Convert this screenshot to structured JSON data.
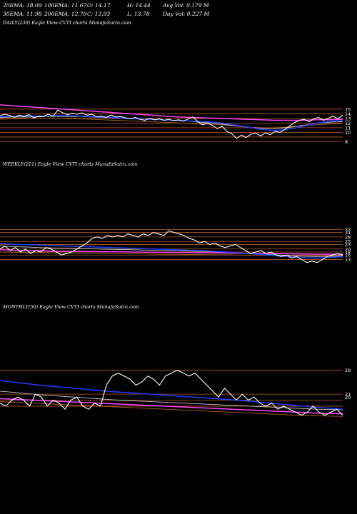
{
  "header": {
    "row1": [
      {
        "label": "20EMA: 18.09"
      },
      {
        "label": "100EMA: 11.67"
      },
      {
        "label": "O: 14.17"
      },
      {
        "label": "H: 14.44"
      },
      {
        "label": "Avg Vol: 0.179 M"
      }
    ],
    "row2": [
      {
        "label": "30EMA: 11.98"
      },
      {
        "label": "200EMA: 12.79"
      },
      {
        "label": "C: 13.93"
      },
      {
        "label": "L: 13.78"
      },
      {
        "label": "Day Vol: 0.227 M"
      }
    ]
  },
  "panels": {
    "daily": {
      "label": "DAILY(230) Eagle  View  CVTI charts MunafaSutra.com"
    },
    "weekly": {
      "label": "WEEKLY(211) Eagle  View  CVTI charts MunafaSutra.com"
    },
    "monthly": {
      "label": "MONTHLY(50) Eagle  View  CVTI charts MunafaSutra.com"
    }
  },
  "colors": {
    "price": "#ffffff",
    "ema_fast": "#1e3cff",
    "ema_mid": "#c8c8c8",
    "ema_long": "#ff44ff",
    "ema_brown": "#b06020",
    "level": "#b35a1f"
  },
  "chart_data": [
    {
      "type": "line",
      "title": "DAILY(230)",
      "y_ticks": [
        "15",
        "14",
        "13",
        "12",
        "11",
        "10",
        "8"
      ],
      "levels": [
        15,
        14,
        13,
        12,
        11,
        10,
        9,
        8
      ],
      "ylim": [
        7,
        16.5
      ],
      "series": [
        {
          "role": "price",
          "values": [
            13.6,
            13.9,
            13.6,
            13.2,
            13.7,
            13.4,
            13.8,
            13.1,
            13.5,
            13.4,
            13.9,
            13.5,
            14.8,
            14.2,
            13.8,
            14.1,
            13.9,
            14.2,
            13.7,
            13.9,
            13.4,
            13.5,
            13.2,
            13.7,
            13.3,
            13.4,
            13.1,
            12.9,
            13.2,
            12.8,
            12.6,
            13.0,
            12.7,
            12.9,
            12.6,
            12.8,
            12.5,
            12.7,
            12.4,
            12.9,
            13.3,
            12.3,
            11.6,
            12.0,
            11.5,
            10.8,
            11.3,
            10.2,
            9.7,
            8.7,
            9.4,
            8.9,
            9.6,
            9.8,
            9.2,
            9.9,
            9.5,
            10.2,
            10.0,
            10.6,
            11.4,
            12.1,
            12.6,
            12.8,
            12.3,
            12.9,
            13.2,
            12.6,
            13.0,
            13.5,
            12.9,
            13.7
          ]
        },
        {
          "role": "ema_fast",
          "values": [
            13.4,
            13.5,
            13.5,
            13.5,
            13.5,
            13.6,
            13.6,
            13.5,
            13.4,
            13.3,
            13.2,
            13.0,
            12.9,
            12.8,
            12.7,
            12.6,
            12.5,
            12.4,
            12.3,
            12.1,
            11.8,
            11.4,
            11.0,
            10.6,
            10.4,
            10.6,
            11.0,
            11.6,
            12.1,
            12.4,
            12.5
          ]
        },
        {
          "role": "ema_mid",
          "values": [
            13.2,
            13.3,
            13.3,
            13.3,
            13.4,
            13.4,
            13.4,
            13.4,
            13.3,
            13.2,
            13.1,
            13.0,
            12.9,
            12.8,
            12.7,
            12.6,
            12.5,
            12.3,
            12.1,
            11.9,
            11.6,
            11.3,
            11.0,
            10.8,
            10.8,
            11.0,
            11.3,
            11.7,
            12.0,
            12.2,
            12.3
          ]
        },
        {
          "role": "ema_long",
          "values": [
            15.9,
            15.7,
            15.5,
            15.3,
            15.1,
            14.9,
            14.7,
            14.5,
            14.3,
            14.1,
            13.9,
            13.7,
            13.5,
            13.3,
            13.2,
            13.1,
            13.0,
            12.9,
            12.8,
            12.7,
            12.6,
            12.6,
            12.6,
            12.7,
            12.7,
            12.8
          ]
        },
        {
          "role": "ema_brown",
          "values": [
            12.8,
            12.9,
            12.9,
            13.0,
            13.0,
            13.0,
            12.9,
            12.9,
            12.8,
            12.7,
            12.6,
            12.5,
            12.4,
            12.3,
            12.2,
            12.1,
            12.0,
            11.9,
            11.8,
            11.7,
            11.5,
            11.3,
            11.1,
            11.0,
            11.0,
            11.1,
            11.3,
            11.5,
            11.7,
            11.8,
            11.9
          ]
        }
      ]
    },
    {
      "type": "line",
      "title": "WEEKLY(211)",
      "y_ticks": [
        "33",
        "31",
        "28",
        "25",
        "23",
        "20",
        "18",
        "16",
        "13"
      ],
      "levels": [
        33,
        31,
        28,
        25,
        23,
        20,
        18,
        16,
        13
      ],
      "ylim": [
        9,
        36
      ],
      "series": [
        {
          "role": "price",
          "values": [
            20,
            22,
            19,
            21,
            18,
            20,
            17,
            19,
            18,
            21,
            20,
            18,
            16,
            17,
            18,
            20,
            22,
            24,
            27,
            28,
            27,
            29,
            28,
            29,
            28,
            30,
            29,
            28,
            30,
            29,
            31,
            30,
            29,
            32,
            31,
            30,
            29,
            27,
            26,
            24,
            25,
            23,
            24,
            22,
            21,
            22,
            23,
            21,
            19,
            17,
            18,
            19,
            17,
            18,
            16,
            15,
            16,
            14,
            15,
            13,
            11,
            12,
            11,
            13,
            15,
            16,
            17,
            16
          ]
        },
        {
          "role": "ema_fast",
          "values": [
            23.5,
            23.2,
            22.9,
            22.6,
            22.3,
            22.0,
            21.7,
            21.4,
            21.1,
            20.8,
            20.5,
            20.2,
            19.9,
            19.6,
            19.3,
            19.0,
            18.6,
            18.1,
            17.5,
            16.9,
            16.3,
            15.6,
            14.9,
            14.3,
            14.0,
            14.3,
            14.8
          ]
        },
        {
          "role": "ema_mid",
          "values": [
            22.0,
            21.6,
            21.3,
            21.0,
            20.7,
            20.5,
            20.3,
            20.1,
            19.9,
            19.7,
            19.5,
            19.3,
            19.1,
            18.9,
            18.7,
            18.5,
            18.2,
            17.9,
            17.5,
            17.1,
            16.6,
            16.1,
            15.6,
            15.2,
            15.0,
            15.1,
            15.4
          ]
        },
        {
          "role": "ema_long",
          "values": [
            19.5,
            19.2,
            19.0,
            18.8,
            18.6,
            18.5,
            18.4,
            18.3,
            18.2,
            18.1,
            18.0,
            17.9,
            17.8,
            17.7,
            17.6,
            17.5,
            17.4,
            17.3,
            17.2,
            17.1,
            17.0,
            16.9,
            16.8,
            16.7,
            16.6,
            16.6,
            16.6
          ]
        },
        {
          "role": "ema_brown",
          "values": [
            18.0,
            17.8,
            17.6,
            17.5,
            17.4,
            17.3,
            17.2,
            17.1,
            17.0,
            16.9,
            16.8,
            16.7,
            16.6,
            16.5,
            16.4,
            16.3,
            16.2,
            16.1,
            16.0,
            15.9,
            15.8,
            15.7,
            15.6,
            15.5,
            15.5,
            15.5,
            15.6
          ]
        }
      ]
    },
    {
      "type": "line",
      "title": "MONTHLY(50)",
      "y_ticks": [
        "29",
        "21",
        "20"
      ],
      "levels": [
        29,
        21,
        19,
        17
      ],
      "ylim": [
        12,
        31
      ],
      "series": [
        {
          "role": "price",
          "values": [
            18,
            17,
            19,
            20,
            19,
            17,
            21,
            20,
            17,
            19,
            18,
            16,
            19,
            20,
            17,
            16,
            18,
            17,
            24,
            27,
            28,
            27,
            26,
            24,
            25,
            27,
            26,
            24,
            27,
            28,
            29,
            28,
            27,
            28,
            26,
            24,
            22,
            20,
            23,
            21,
            19,
            21,
            19,
            20,
            18,
            17,
            18,
            16,
            17,
            16,
            15,
            14,
            15,
            17,
            15,
            14,
            15,
            16,
            14
          ]
        },
        {
          "role": "ema_fast",
          "values": [
            25.5,
            25.0,
            24.5,
            24.0,
            23.6,
            23.2,
            22.8,
            22.4,
            22.0,
            21.7,
            21.4,
            21.1,
            20.8,
            20.5,
            20.2,
            19.9,
            19.6,
            19.3,
            19.0,
            18.6,
            18.2,
            17.8,
            17.4,
            17.0,
            16.6,
            16.3,
            16.0
          ]
        },
        {
          "role": "ema_mid",
          "values": [
            22.0,
            21.6,
            21.2,
            20.8,
            20.5,
            20.2,
            19.9,
            19.6,
            19.3,
            19.0,
            18.8,
            18.6,
            18.4,
            18.2,
            18.0,
            17.8,
            17.6,
            17.4,
            17.2,
            17.0,
            16.8,
            16.6,
            16.4,
            16.2,
            16.0,
            15.9,
            15.8
          ]
        },
        {
          "role": "ema_long",
          "values": [
            19.5,
            19.3,
            19.1,
            18.9,
            18.7,
            18.5,
            18.3,
            18.1,
            17.9,
            17.7,
            17.5,
            17.3,
            17.1,
            16.9,
            16.7,
            16.5,
            16.3,
            16.1,
            15.9,
            15.7,
            15.5,
            15.3,
            15.1,
            14.9,
            14.7,
            14.6,
            14.5
          ]
        },
        {
          "role": "ema_brown",
          "values": [
            18.5,
            18.3,
            18.1,
            17.9,
            17.7,
            17.5,
            17.3,
            17.1,
            16.9,
            16.7,
            16.5,
            16.3,
            16.1,
            15.9,
            15.7,
            15.5,
            15.3,
            15.1,
            14.9,
            14.7,
            14.5,
            14.3,
            14.1,
            13.9,
            13.8,
            13.7,
            13.6
          ]
        }
      ]
    }
  ]
}
